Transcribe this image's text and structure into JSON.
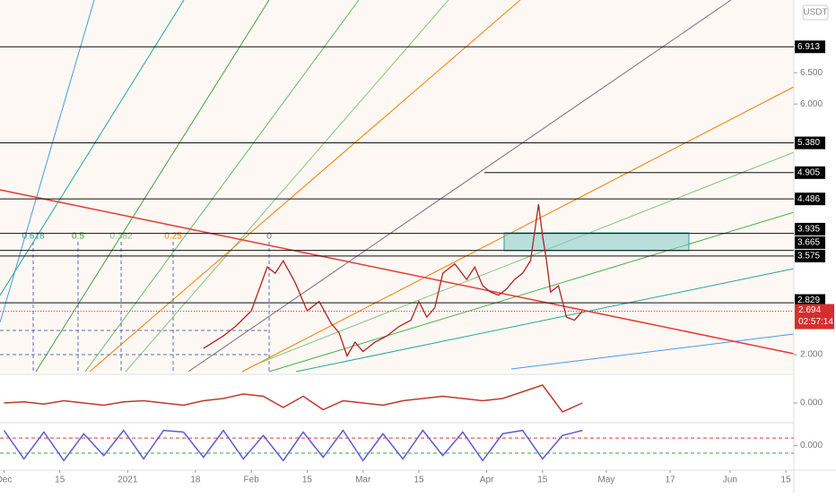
{
  "chart_data": [
    {
      "type": "line",
      "color": "#b22222",
      "currency": "USDT",
      "countdown": "02:57:14",
      "fib_labels": [
        "0.618",
        "0.5",
        "0.382",
        "0.25",
        "0"
      ],
      "current_price": {
        "value": 2.694,
        "label": "2.694"
      },
      "price_levels": [
        {
          "value": 6.913,
          "label": "6.913"
        },
        {
          "value": 5.38,
          "label": "5.380"
        },
        {
          "value": 4.905,
          "label": "4.905"
        },
        {
          "value": 4.486,
          "label": "4.486"
        },
        {
          "value": 3.935,
          "label": "3.935"
        },
        {
          "value": 3.665,
          "label": "3.665"
        },
        {
          "value": 3.575,
          "label": "3.575"
        },
        {
          "value": 2.829,
          "label": "2.829"
        }
      ],
      "ylim": [
        1.73,
        7.66
      ],
      "yticks": [
        {
          "value": 2,
          "label": "2.000"
        },
        {
          "value": 6,
          "label": "6.000"
        },
        {
          "value": 6.5,
          "label": "6.500"
        }
      ],
      "xlim": [
        -1,
        198
      ],
      "xticks": [
        {
          "value": 0,
          "label": "Dec"
        },
        {
          "value": 14,
          "label": "15"
        },
        {
          "value": 31,
          "label": "2021"
        },
        {
          "value": 48,
          "label": "18"
        },
        {
          "value": 62,
          "label": "Feb"
        },
        {
          "value": 76,
          "label": "15"
        },
        {
          "value": 90,
          "label": "Mar"
        },
        {
          "value": 104,
          "label": "15"
        },
        {
          "value": 121,
          "label": "Apr"
        },
        {
          "value": 135,
          "label": "15"
        },
        {
          "value": 151,
          "label": "May"
        },
        {
          "value": 167,
          "label": "17"
        },
        {
          "value": 182,
          "label": "Jun"
        },
        {
          "value": 196,
          "label": "15"
        }
      ],
      "x": [
        50,
        55,
        58,
        62,
        64,
        66,
        68,
        70,
        73,
        76,
        79,
        82,
        84,
        86,
        88,
        90,
        93,
        96,
        99,
        102,
        104,
        106,
        108,
        110,
        113,
        116,
        118,
        120,
        122,
        124,
        126,
        128,
        130,
        132,
        134,
        135,
        136,
        137,
        139,
        141,
        143,
        145
      ],
      "values": [
        2.1,
        2.3,
        2.45,
        2.7,
        3.05,
        3.4,
        3.3,
        3.5,
        3.15,
        2.7,
        2.85,
        2.5,
        2.35,
        1.98,
        2.2,
        2.05,
        2.2,
        2.3,
        2.45,
        2.55,
        2.85,
        2.6,
        2.75,
        3.3,
        3.45,
        3.2,
        3.4,
        3.1,
        3.0,
        2.95,
        3.05,
        3.2,
        3.3,
        3.5,
        4.4,
        3.9,
        3.5,
        3.0,
        3.1,
        2.6,
        2.55,
        2.694
      ]
    },
    {
      "type": "line",
      "color": "#c0392b",
      "ylim": [
        -0.8,
        1.2
      ],
      "yticks": [
        {
          "value": 0,
          "label": "0.000"
        }
      ],
      "x": [
        0,
        5,
        10,
        15,
        20,
        25,
        30,
        35,
        40,
        45,
        50,
        55,
        60,
        65,
        70,
        75,
        80,
        85,
        90,
        95,
        100,
        105,
        110,
        115,
        120,
        125,
        130,
        135,
        140,
        145
      ],
      "values": [
        0,
        0.05,
        -0.05,
        0.1,
        0,
        -0.1,
        0.05,
        0.1,
        0,
        -0.1,
        0.1,
        0.2,
        0.4,
        0.3,
        -0.2,
        0.3,
        -0.3,
        0.1,
        0,
        -0.1,
        0.1,
        0.2,
        0.3,
        0.2,
        0.1,
        0.2,
        0.5,
        0.8,
        -0.4,
        0
      ]
    },
    {
      "type": "line",
      "color": "#5b5bd6",
      "ylim": [
        -1.2,
        1.2
      ],
      "yticks": [
        {
          "value": 0,
          "label": "0.000"
        }
      ],
      "levels": [
        0.45,
        -0.45
      ],
      "x": [
        0,
        5,
        10,
        15,
        20,
        25,
        30,
        35,
        40,
        45,
        50,
        55,
        60,
        65,
        70,
        75,
        80,
        85,
        90,
        95,
        100,
        105,
        110,
        115,
        120,
        125,
        130,
        135,
        140,
        145
      ],
      "values": [
        0.9,
        -0.8,
        0.8,
        -0.9,
        0.7,
        -0.6,
        0.9,
        -0.8,
        0.9,
        0.8,
        -0.7,
        0.9,
        -0.8,
        0.6,
        -0.9,
        0.8,
        -0.7,
        0.9,
        -0.9,
        0.7,
        -0.8,
        0.9,
        -0.6,
        0.8,
        -0.9,
        0.7,
        0.9,
        -0.8,
        0.6,
        0.9
      ]
    }
  ]
}
